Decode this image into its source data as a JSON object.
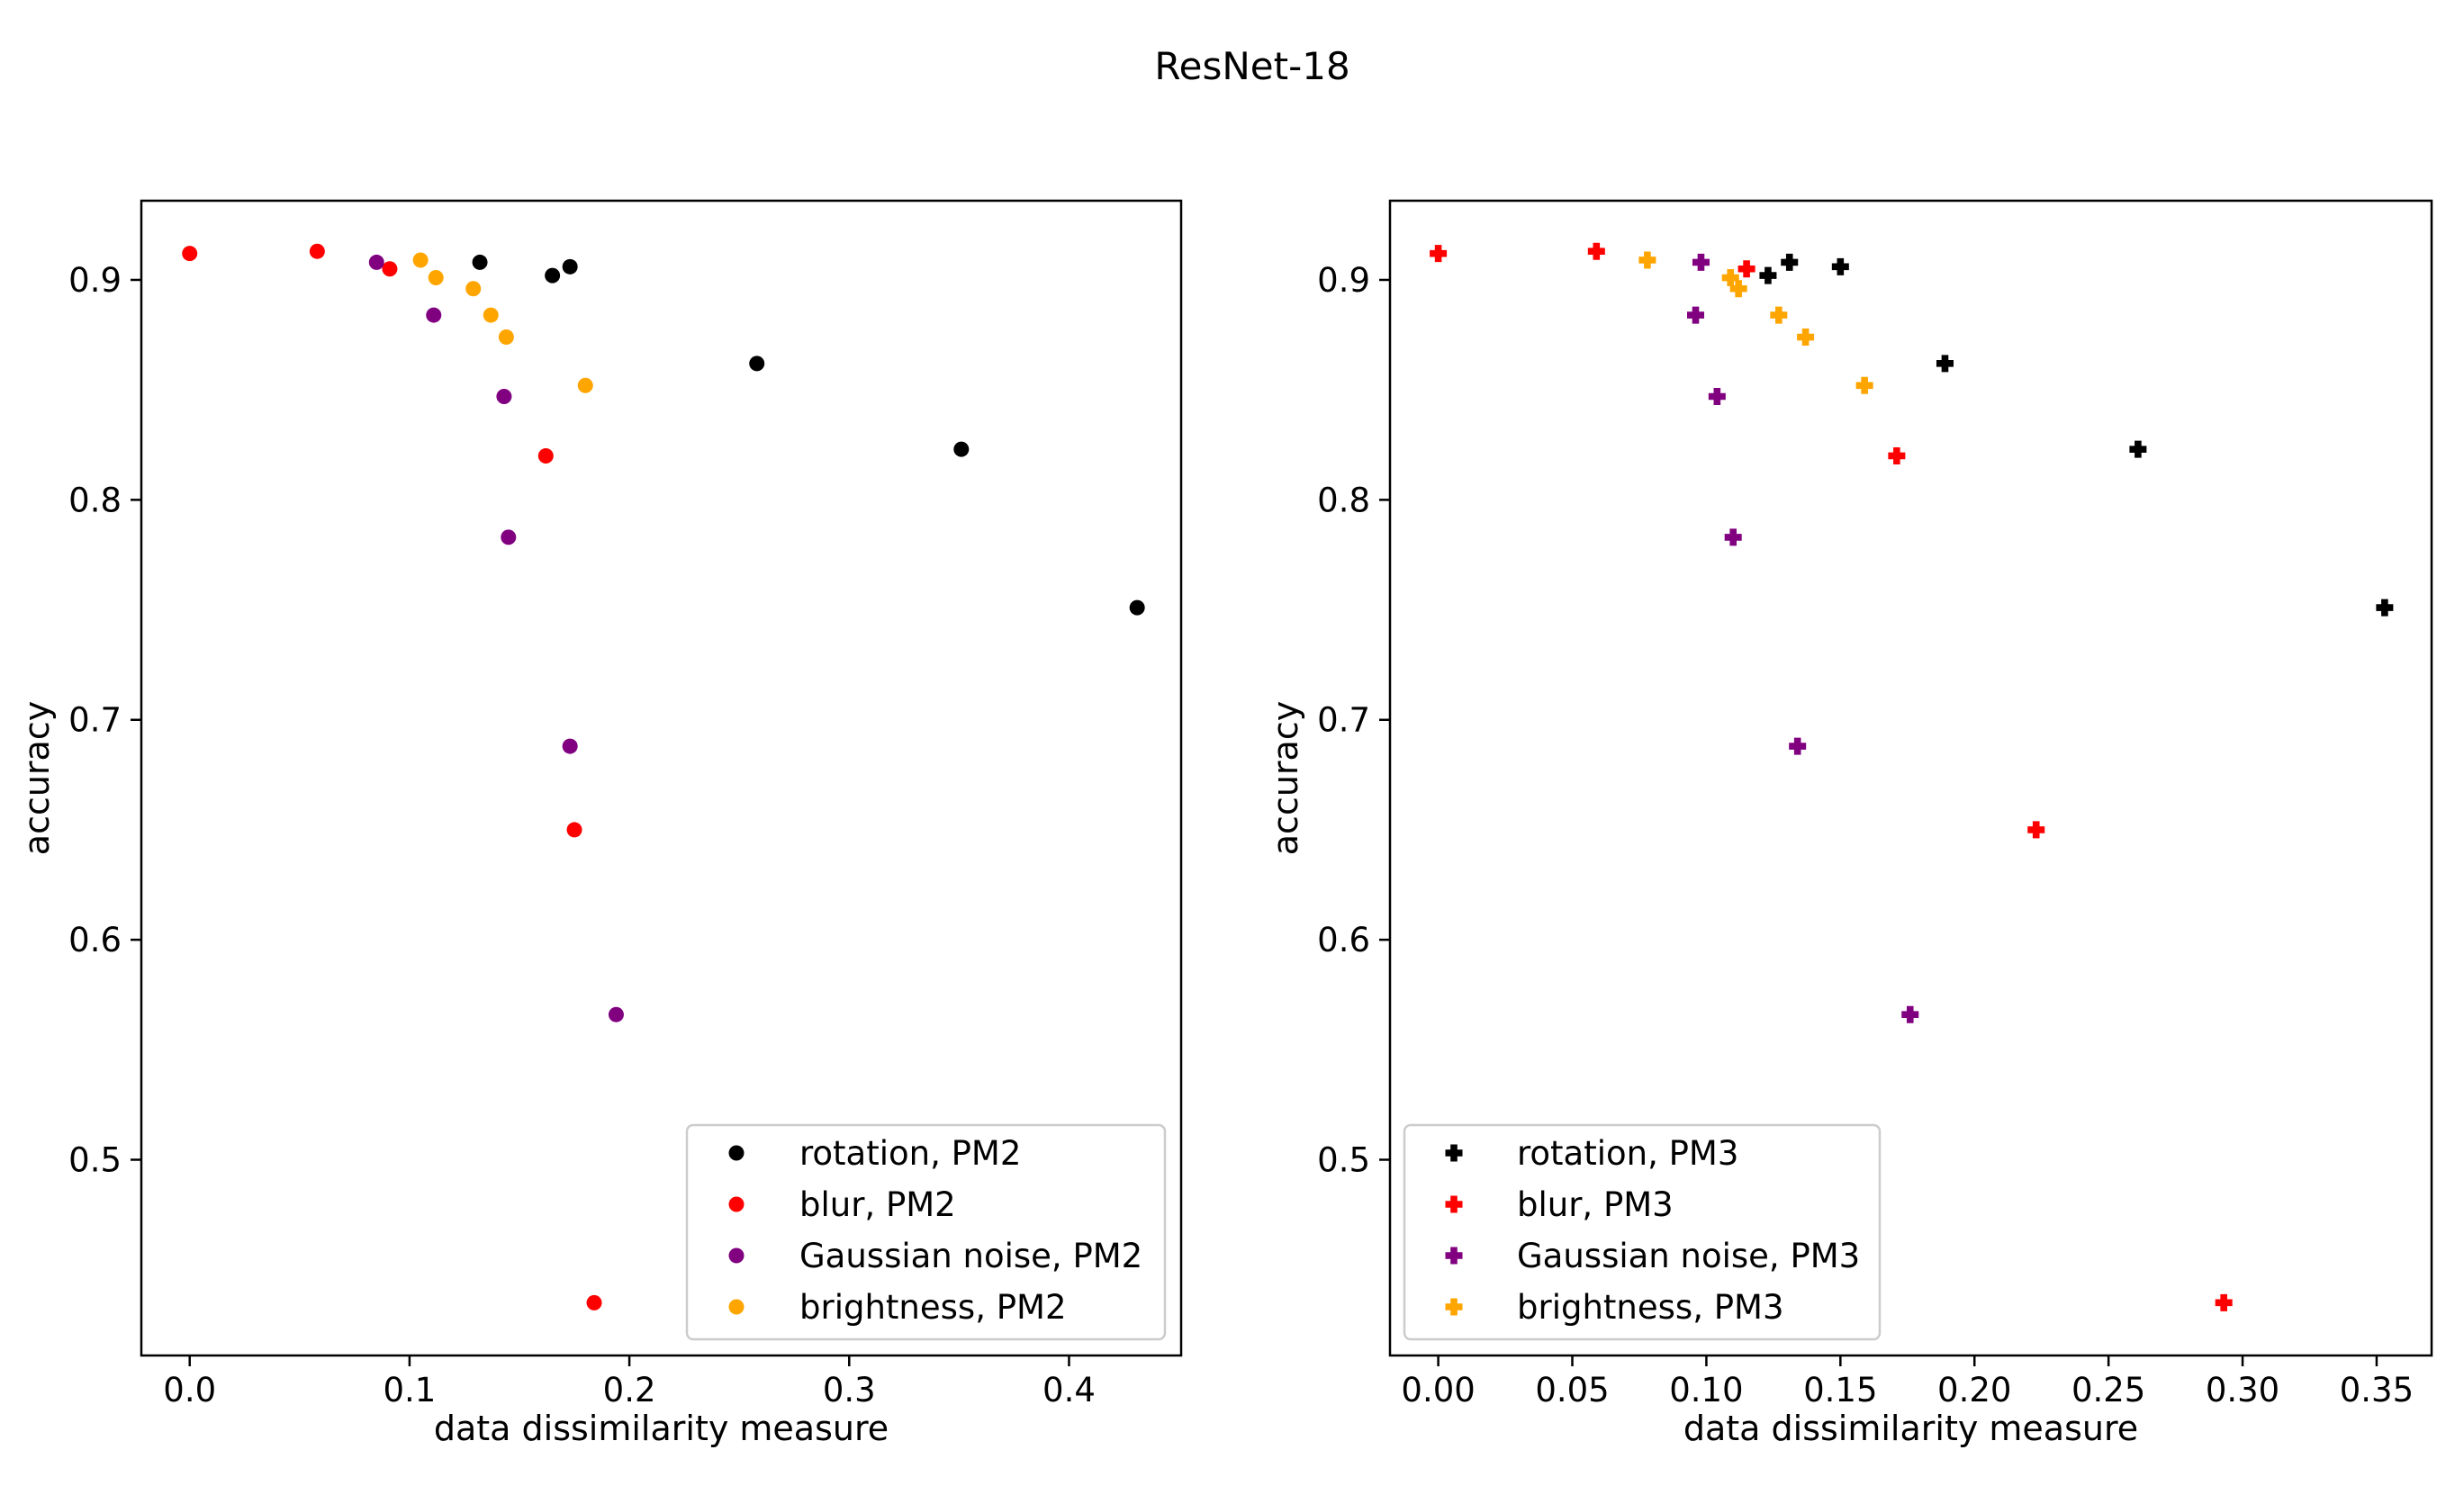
{
  "suptitle": "ResNet-18",
  "chart_data": [
    {
      "type": "scatter",
      "xlabel": "data dissimilarity measure",
      "ylabel": "accuracy",
      "xlim": [
        -0.022,
        0.451
      ],
      "ylim": [
        0.411,
        0.936
      ],
      "xticks": [
        0.0,
        0.1,
        0.2,
        0.3,
        0.4
      ],
      "xtick_labels": [
        "0.0",
        "0.1",
        "0.2",
        "0.3",
        "0.4"
      ],
      "yticks": [
        0.5,
        0.6,
        0.7,
        0.8,
        0.9
      ],
      "ytick_labels": [
        "0.5",
        "0.6",
        "0.7",
        "0.8",
        "0.9"
      ],
      "marker": "circle",
      "legend_position": "lower-right",
      "series": [
        {
          "name": "rotation, PM2",
          "color": "#000000",
          "points": [
            [
              0.132,
              0.908
            ],
            [
              0.165,
              0.902
            ],
            [
              0.173,
              0.906
            ],
            [
              0.258,
              0.862
            ],
            [
              0.351,
              0.823
            ],
            [
              0.431,
              0.751
            ]
          ]
        },
        {
          "name": "blur, PM2",
          "color": "#ff0000",
          "points": [
            [
              0.0,
              0.912
            ],
            [
              0.058,
              0.913
            ],
            [
              0.091,
              0.905
            ],
            [
              0.162,
              0.82
            ],
            [
              0.175,
              0.65
            ],
            [
              0.184,
              0.435
            ]
          ]
        },
        {
          "name": "Gaussian noise, PM2",
          "color": "#800080",
          "points": [
            [
              0.085,
              0.908
            ],
            [
              0.111,
              0.884
            ],
            [
              0.143,
              0.847
            ],
            [
              0.145,
              0.783
            ],
            [
              0.173,
              0.688
            ],
            [
              0.194,
              0.566
            ]
          ]
        },
        {
          "name": "brightness, PM2",
          "color": "#ffa500",
          "points": [
            [
              0.105,
              0.909
            ],
            [
              0.112,
              0.901
            ],
            [
              0.129,
              0.896
            ],
            [
              0.137,
              0.884
            ],
            [
              0.144,
              0.874
            ],
            [
              0.18,
              0.852
            ]
          ]
        }
      ]
    },
    {
      "type": "scatter",
      "xlabel": "data dissimilarity measure",
      "ylabel": "accuracy",
      "xlim": [
        -0.018,
        0.3705
      ],
      "ylim": [
        0.411,
        0.936
      ],
      "xticks": [
        0.0,
        0.05,
        0.1,
        0.15,
        0.2,
        0.25,
        0.3,
        0.35
      ],
      "xtick_labels": [
        "0.00",
        "0.05",
        "0.10",
        "0.15",
        "0.20",
        "0.25",
        "0.30",
        "0.35"
      ],
      "yticks": [
        0.5,
        0.6,
        0.7,
        0.8,
        0.9
      ],
      "ytick_labels": [
        "0.5",
        "0.6",
        "0.7",
        "0.8",
        "0.9"
      ],
      "marker": "plus",
      "legend_position": "lower-left",
      "series": [
        {
          "name": "rotation, PM3",
          "color": "#000000",
          "points": [
            [
              0.123,
              0.902
            ],
            [
              0.131,
              0.908
            ],
            [
              0.15,
              0.906
            ],
            [
              0.189,
              0.862
            ],
            [
              0.261,
              0.823
            ],
            [
              0.353,
              0.751
            ]
          ]
        },
        {
          "name": "blur, PM3",
          "color": "#ff0000",
          "points": [
            [
              0.0,
              0.912
            ],
            [
              0.059,
              0.913
            ],
            [
              0.115,
              0.905
            ],
            [
              0.171,
              0.82
            ],
            [
              0.223,
              0.65
            ],
            [
              0.293,
              0.435
            ]
          ]
        },
        {
          "name": "Gaussian noise, PM3",
          "color": "#800080",
          "points": [
            [
              0.096,
              0.884
            ],
            [
              0.098,
              0.908
            ],
            [
              0.104,
              0.847
            ],
            [
              0.11,
              0.783
            ],
            [
              0.134,
              0.688
            ],
            [
              0.176,
              0.566
            ]
          ]
        },
        {
          "name": "brightness, PM3",
          "color": "#ffa500",
          "points": [
            [
              0.078,
              0.909
            ],
            [
              0.109,
              0.901
            ],
            [
              0.112,
              0.896
            ],
            [
              0.127,
              0.884
            ],
            [
              0.137,
              0.874
            ],
            [
              0.159,
              0.852
            ]
          ]
        }
      ]
    }
  ]
}
